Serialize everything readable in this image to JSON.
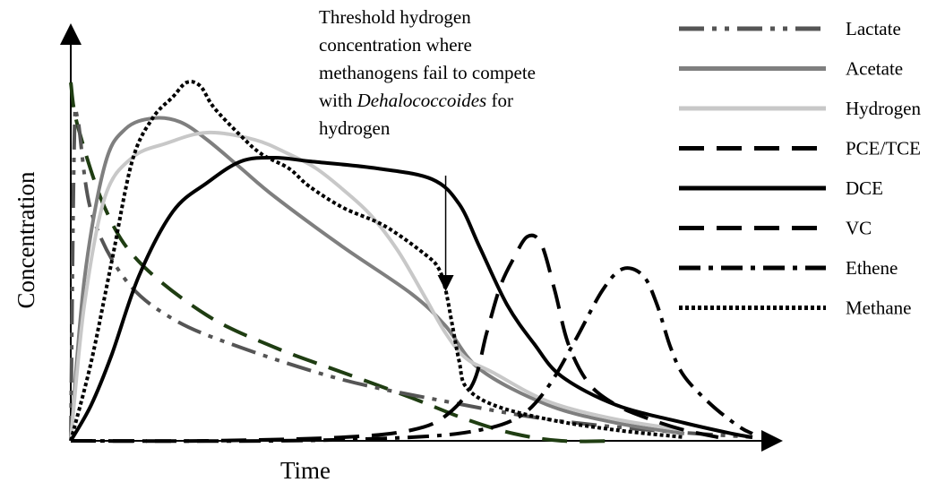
{
  "chart_data": {
    "type": "line",
    "xlabel": "Time",
    "ylabel": "Concentration",
    "xlim": [
      0,
      100
    ],
    "ylim": [
      0,
      100
    ],
    "tick_labels": false,
    "grid": false,
    "legend_position": "right",
    "annotation": {
      "lines": [
        "Threshold hydrogen",
        "concentration where",
        "methanogens fail to compete",
        "with ",
        "Dehalococcoides",
        " for",
        "hydrogen"
      ],
      "arrow_x": 55,
      "arrow_from": 74,
      "arrow_to": 44
    },
    "series": [
      {
        "name": "Lactate",
        "color": "#555555",
        "dash": "long-dash-dot-dot",
        "x": [
          0,
          0.5,
          1,
          3,
          8,
          15,
          25,
          40,
          55,
          70,
          85,
          100
        ],
        "y": [
          0,
          82,
          90,
          64,
          45,
          34,
          26,
          17,
          11,
          6,
          3,
          1
        ]
      },
      {
        "name": "Acetate",
        "color": "#7f7f7f",
        "dash": "solid",
        "x": [
          0,
          2,
          5,
          8,
          12,
          16,
          20,
          25,
          30,
          40,
          50,
          55,
          60,
          70,
          80,
          90
        ],
        "y": [
          0,
          45,
          77,
          87,
          90,
          89,
          84,
          76,
          68,
          54,
          41,
          32,
          20,
          10,
          5,
          2
        ]
      },
      {
        "name": "Hydrogen",
        "color": "#c8c8c8",
        "dash": "solid",
        "x": [
          0,
          2,
          5,
          9,
          14,
          20,
          27,
          32,
          36,
          40,
          44,
          48,
          52,
          55,
          58,
          62,
          70,
          80,
          90
        ],
        "y": [
          0,
          38,
          68,
          79,
          83,
          86,
          84,
          80,
          76,
          70,
          63,
          53,
          40,
          30,
          23,
          19,
          11,
          6,
          3
        ]
      },
      {
        "name": "PCE/TCE",
        "color": "#1f3d12",
        "dash": "long-dash",
        "x": [
          0,
          1,
          5,
          10,
          20,
          30,
          40,
          50,
          58,
          65,
          72,
          80
        ],
        "y": [
          100,
          88,
          65,
          50,
          35,
          26,
          19,
          12,
          6,
          2,
          0,
          0
        ]
      },
      {
        "name": "DCE",
        "color": "#000000",
        "dash": "solid",
        "x": [
          0,
          3,
          6,
          10,
          15,
          20,
          25,
          30,
          35,
          45,
          53,
          57,
          60,
          64,
          68,
          72,
          80,
          90,
          97,
          100
        ],
        "y": [
          0,
          10,
          24,
          46,
          64,
          72,
          78,
          79,
          78,
          76,
          73,
          66,
          54,
          38,
          27,
          18,
          10,
          5,
          2,
          1
        ]
      },
      {
        "name": "VC",
        "color": "#000000",
        "dash": "long-dash",
        "x": [
          0,
          20,
          40,
          50,
          55,
          59,
          61,
          63,
          65,
          67,
          69,
          71,
          73,
          76,
          80,
          85,
          90,
          95
        ],
        "y": [
          0,
          0,
          1,
          3,
          7,
          16,
          30,
          43,
          51,
          57,
          55,
          42,
          27,
          16,
          10,
          6,
          3,
          1
        ]
      },
      {
        "name": "Ethene",
        "color": "#000000",
        "dash": "dash-dot",
        "x": [
          0,
          30,
          50,
          60,
          66,
          70,
          74,
          78,
          81,
          84,
          86,
          88,
          90,
          94,
          98,
          100
        ],
        "y": [
          0,
          0,
          1,
          3,
          7,
          15,
          28,
          42,
          48,
          46,
          38,
          26,
          18,
          10,
          4,
          2
        ]
      },
      {
        "name": "Methane",
        "color": "#000000",
        "dash": "dotted",
        "x": [
          0,
          3,
          6,
          9,
          12,
          15,
          17,
          19,
          21,
          25,
          28,
          32,
          35,
          40,
          46,
          52,
          54,
          55,
          56,
          57,
          58,
          62,
          70,
          80,
          90
        ],
        "y": [
          0,
          22,
          50,
          78,
          90,
          96,
          100,
          99,
          93,
          85,
          80,
          76,
          71,
          65,
          60,
          52,
          48,
          42,
          32,
          22,
          15,
          10,
          6,
          3,
          1
        ]
      }
    ]
  }
}
